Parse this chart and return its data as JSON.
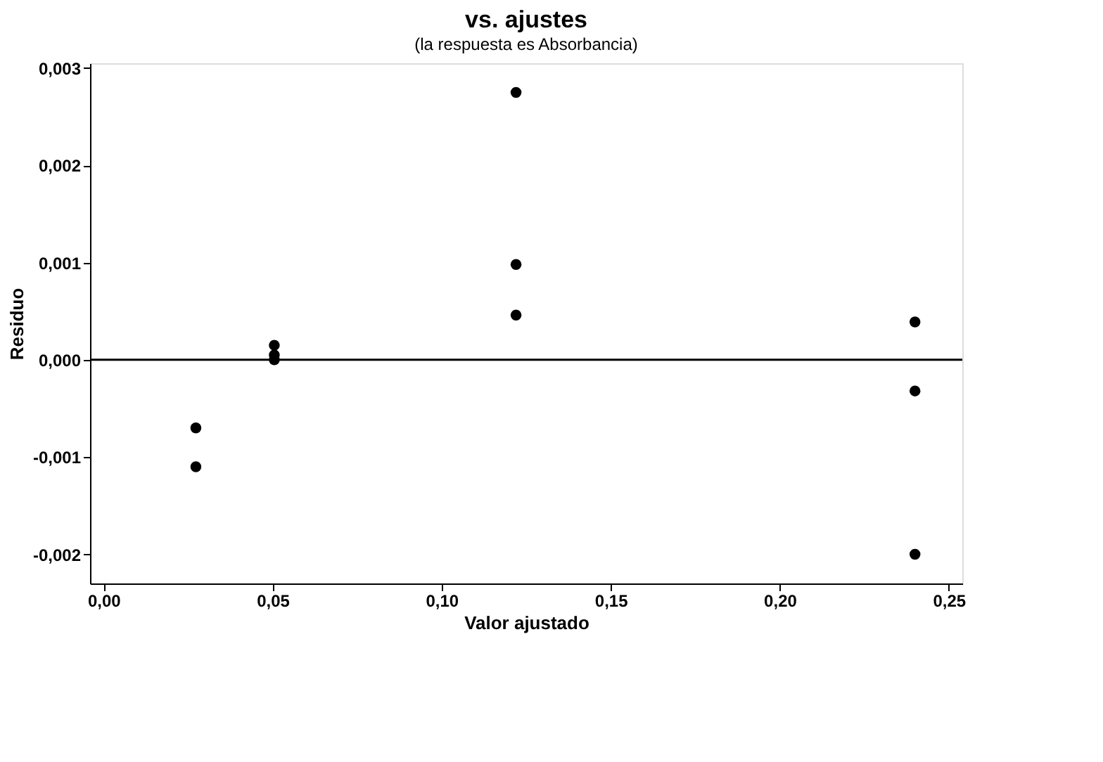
{
  "chart_data": {
    "type": "scatter",
    "title": "vs. ajustes",
    "subtitle": "(la respuesta es Absorbancia)",
    "xlabel": "Valor ajustado",
    "ylabel": "Residuo",
    "series": [
      {
        "color": "#000000",
        "x": [
          0.0273,
          0.0273,
          0.0505,
          0.0505,
          0.0505,
          0.122,
          0.122,
          0.122,
          0.24,
          0.24,
          0.24
        ],
        "values": [
          -0.0007,
          -0.0011,
          0.00015,
          5e-05,
          0.0,
          0.00275,
          0.00098,
          0.00046,
          0.00039,
          -0.00032,
          -0.002
        ]
      }
    ],
    "xlim": [
      -0.004,
      0.254
    ],
    "ylim": [
      -0.0023,
      0.00305
    ],
    "xticks": [
      {
        "value": 0,
        "label": "0,00"
      },
      {
        "value": 0.05,
        "label": "0,05"
      },
      {
        "value": 0.1,
        "label": "0,10"
      },
      {
        "value": 0.15,
        "label": "0,15"
      },
      {
        "value": 0.2,
        "label": "0,20"
      },
      {
        "value": 0.25,
        "label": "0,25"
      }
    ],
    "yticks": [
      {
        "value": -0.002,
        "label": "-0,002"
      },
      {
        "value": -0.001,
        "label": "-0,001"
      },
      {
        "value": 0,
        "label": "0,000"
      },
      {
        "value": 0.001,
        "label": "0,001"
      },
      {
        "value": 0.002,
        "label": "0,002"
      },
      {
        "value": 0.003,
        "label": "0,003"
      }
    ],
    "ref_lines": [
      {
        "axis": "y",
        "value": 0,
        "color": "#000000",
        "line_style": "solid"
      }
    ],
    "marker": "circle",
    "grid": false
  }
}
